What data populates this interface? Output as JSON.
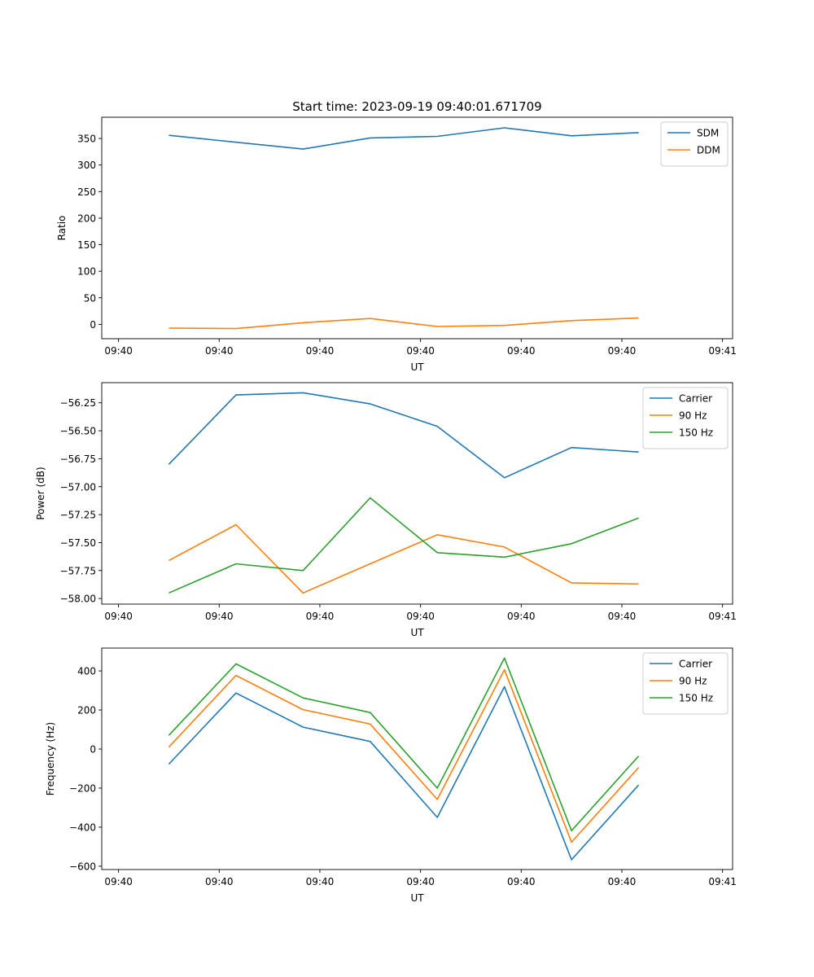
{
  "figure": {
    "title": "Start time: 2023-09-19 09:40:01.671709"
  },
  "chart_data": [
    {
      "type": "line",
      "title": "Start time: 2023-09-19 09:40:01.671709",
      "xlabel": "UT",
      "ylabel": "Ratio",
      "x": [
        1,
        2,
        3,
        4,
        5,
        6,
        7,
        8
      ],
      "x_ticks": [
        0.25,
        1.75,
        3.25,
        4.75,
        6.25,
        7.75,
        9.25
      ],
      "x_tick_labels": [
        "09:40",
        "09:40",
        "09:40",
        "09:40",
        "09:40",
        "09:40",
        "09:41"
      ],
      "xlim": [
        0,
        9.4
      ],
      "ylim": [
        -27,
        390
      ],
      "y_ticks": [
        0,
        50,
        100,
        150,
        200,
        250,
        300,
        350
      ],
      "y_tick_labels": [
        "0",
        "50",
        "100",
        "150",
        "200",
        "250",
        "300",
        "350"
      ],
      "legend_position": "top-right",
      "series": [
        {
          "name": "SDM",
          "color": "#1f77b4",
          "values": [
            356,
            343,
            330,
            351,
            354,
            370,
            355,
            361
          ]
        },
        {
          "name": "DDM",
          "color": "#ff7f0e",
          "values": [
            -7,
            -8,
            3,
            11,
            -4,
            -2,
            7,
            12
          ]
        }
      ]
    },
    {
      "type": "line",
      "title": "",
      "xlabel": "UT",
      "ylabel": "Power (dB)",
      "x": [
        1,
        2,
        3,
        4,
        5,
        6,
        7,
        8
      ],
      "x_ticks": [
        0.25,
        1.75,
        3.25,
        4.75,
        6.25,
        7.75,
        9.25
      ],
      "x_tick_labels": [
        "09:40",
        "09:40",
        "09:40",
        "09:40",
        "09:40",
        "09:40",
        "09:41"
      ],
      "xlim": [
        0,
        9.4
      ],
      "ylim": [
        -58.05,
        -56.07
      ],
      "y_ticks": [
        -58.0,
        -57.75,
        -57.5,
        -57.25,
        -57.0,
        -56.75,
        -56.5,
        -56.25
      ],
      "y_tick_labels": [
        "−58.00",
        "−57.75",
        "−57.50",
        "−57.25",
        "−57.00",
        "−56.75",
        "−56.50",
        "−56.25"
      ],
      "legend_position": "top-right",
      "series": [
        {
          "name": "Carrier",
          "color": "#1f77b4",
          "values": [
            -56.8,
            -56.18,
            -56.16,
            -56.26,
            -56.46,
            -56.92,
            -56.65,
            -56.69
          ]
        },
        {
          "name": "90 Hz",
          "color": "#ff7f0e",
          "values": [
            -57.66,
            -57.34,
            -57.95,
            -57.69,
            -57.43,
            -57.54,
            -57.86,
            -57.87
          ]
        },
        {
          "name": "150 Hz",
          "color": "#2ca02c",
          "values": [
            -57.95,
            -57.69,
            -57.75,
            -57.1,
            -57.59,
            -57.63,
            -57.51,
            -57.28
          ]
        }
      ]
    },
    {
      "type": "line",
      "title": "",
      "xlabel": "UT",
      "ylabel": "Frequency (Hz)",
      "x": [
        1,
        2,
        3,
        4,
        5,
        6,
        7,
        8
      ],
      "x_ticks": [
        0.25,
        1.75,
        3.25,
        4.75,
        6.25,
        7.75,
        9.25
      ],
      "x_tick_labels": [
        "09:40",
        "09:40",
        "09:40",
        "09:40",
        "09:40",
        "09:40",
        "09:41"
      ],
      "xlim": [
        0,
        9.4
      ],
      "ylim": [
        -617,
        517
      ],
      "y_ticks": [
        -600,
        -400,
        -200,
        0,
        200,
        400
      ],
      "y_tick_labels": [
        "−600",
        "−400",
        "−200",
        "0",
        "200",
        "400"
      ],
      "legend_position": "top-right",
      "series": [
        {
          "name": "Carrier",
          "color": "#1f77b4",
          "values": [
            -77,
            287,
            112,
            39,
            -350,
            319,
            -567,
            -184
          ]
        },
        {
          "name": "90 Hz",
          "color": "#ff7f0e",
          "values": [
            10,
            377,
            202,
            128,
            -258,
            406,
            -477,
            -94
          ]
        },
        {
          "name": "150 Hz",
          "color": "#2ca02c",
          "values": [
            70,
            436,
            262,
            187,
            -200,
            466,
            -418,
            -36
          ]
        }
      ]
    }
  ]
}
